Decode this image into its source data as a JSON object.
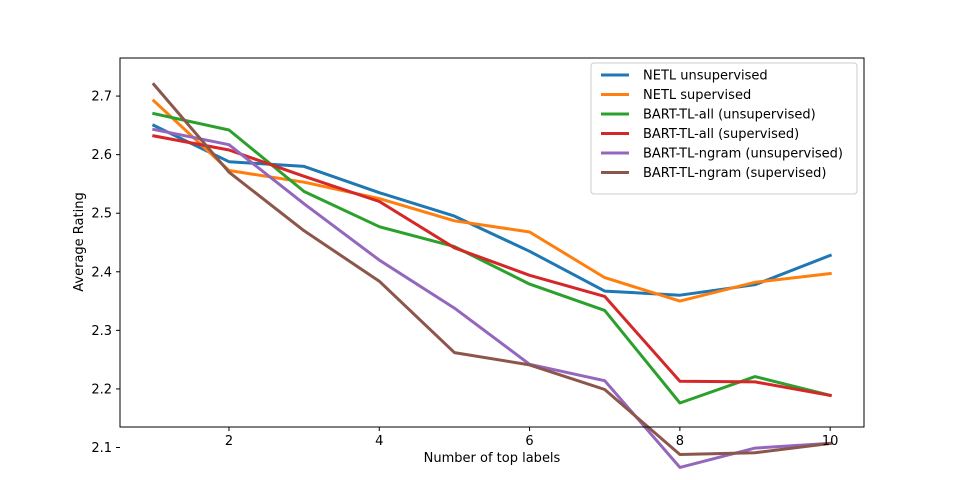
{
  "chart_data": {
    "type": "line",
    "title": "",
    "xlabel": "Number of top labels",
    "ylabel": "Average Rating",
    "x": [
      1,
      2,
      3,
      4,
      5,
      6,
      7,
      8,
      9,
      10
    ],
    "xlim": [
      0.55,
      10.45
    ],
    "ylim": [
      2.135,
      2.765
    ],
    "xticks": [
      2,
      4,
      6,
      8,
      10
    ],
    "xtick_labels": [
      "2",
      "4",
      "6",
      "8",
      "10"
    ],
    "yticks": [
      2.1,
      2.2,
      2.3,
      2.4,
      2.5,
      2.6,
      2.7
    ],
    "ytick_labels": [
      "2.1",
      "2.2",
      "2.3",
      "2.4",
      "2.5",
      "2.6",
      "2.7"
    ],
    "grid": false,
    "legend_position": "top-right",
    "series": [
      {
        "name": "NETL unsupervised",
        "color": "#1f77b4",
        "values": [
          2.65,
          2.588,
          2.58,
          2.535,
          2.495,
          2.435,
          2.367,
          2.36,
          2.378,
          2.428
        ]
      },
      {
        "name": "NETL supervised",
        "color": "#ff7f0e",
        "values": [
          2.692,
          2.573,
          2.553,
          2.525,
          2.487,
          2.468,
          2.39,
          2.35,
          2.382,
          2.397
        ]
      },
      {
        "name": "BART-TL-all (unsupervised)",
        "color": "#2ca02c",
        "values": [
          2.67,
          2.642,
          2.537,
          2.477,
          2.443,
          2.379,
          2.334,
          2.176,
          2.221,
          2.189
        ]
      },
      {
        "name": "BART-TL-all (supervised)",
        "color": "#d62728",
        "values": [
          2.632,
          2.608,
          2.563,
          2.52,
          2.441,
          2.394,
          2.358,
          2.213,
          2.212,
          2.189
        ]
      },
      {
        "name": "BART-TL-ngram (unsupervised)",
        "color": "#9467bd",
        "values": [
          2.643,
          2.617,
          2.516,
          2.42,
          2.338,
          2.242,
          2.214,
          2.066,
          2.099,
          2.107
        ]
      },
      {
        "name": "BART-TL-ngram (supervised)",
        "color": "#8c564b",
        "values": [
          2.72,
          2.57,
          2.47,
          2.384,
          2.262,
          2.241,
          2.199,
          2.088,
          2.091,
          2.107
        ]
      }
    ]
  }
}
